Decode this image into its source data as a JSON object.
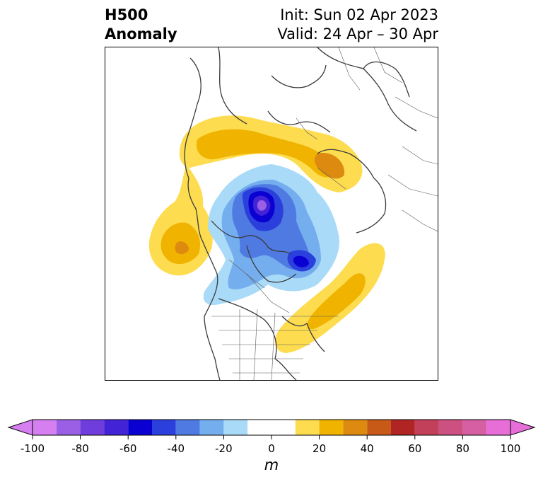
{
  "title": {
    "left_line1": "H500",
    "left_line2": "Anomaly",
    "right_line1": "Init: Sun 02 Apr 2023",
    "right_line2": "Valid: 24 Apr – 30 Apr"
  },
  "colorbar": {
    "unit": "m",
    "ticks": [
      "-100",
      "-80",
      "-60",
      "-40",
      "-20",
      "0",
      "20",
      "40",
      "60",
      "80",
      "100"
    ],
    "levels": [
      -100,
      -90,
      -80,
      -70,
      -60,
      -50,
      -40,
      -30,
      -20,
      -10,
      10,
      20,
      30,
      40,
      50,
      60,
      70,
      80,
      90,
      100
    ],
    "colors": [
      "#d57ff0",
      "#9b5fe6",
      "#6e3ddc",
      "#4223d6",
      "#0a00d2",
      "#2b3fdc",
      "#4f7ae2",
      "#74aeee",
      "#a9daf8",
      "#ffffff",
      "#fddc50",
      "#f0b400",
      "#dd8a10",
      "#c85a18",
      "#b02424",
      "#c2405a",
      "#cc5080",
      "#d65fa4",
      "#e66ed6"
    ],
    "extend": "both"
  },
  "map": {
    "projection": "north-polar-stereographic",
    "anomalies": [
      {
        "region": "North Pole / Arctic Ocean",
        "sign": "negative",
        "peak_m": -100
      },
      {
        "region": "Canadian Arctic Archipelago / Baffin Bay",
        "sign": "negative",
        "peak_m": -60
      },
      {
        "region": "Central Canada / Great Lakes",
        "sign": "negative",
        "peak_m": -20
      },
      {
        "region": "Northern Europe / Scandinavia / Siberia",
        "sign": "positive",
        "peak_m": 30
      },
      {
        "region": "Northeast Pacific / Gulf of Alaska",
        "sign": "positive",
        "peak_m": 50
      },
      {
        "region": "Western Atlantic / US East Coast",
        "sign": "positive",
        "peak_m": 30
      }
    ]
  }
}
